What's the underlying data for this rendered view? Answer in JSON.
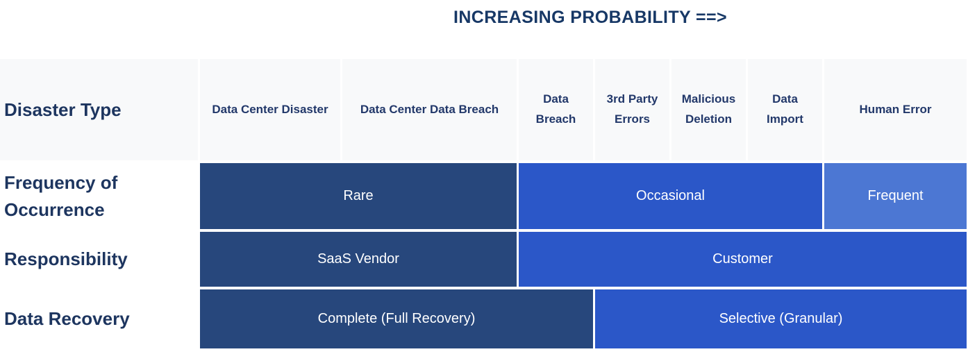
{
  "title": "INCREASING PROBABILITY ==>",
  "colors": {
    "dark": "#27477c",
    "medium": "#2b57c8",
    "light": "#4c77d3",
    "header_bg": "#f8f9fa",
    "label_text": "#1d355f",
    "title_text": "#173866",
    "cell_text": "#ffffff"
  },
  "table": {
    "header_label": "Disaster Type",
    "columns": [
      "Data Center Disaster",
      "Data Center Data Breach",
      "Data Breach",
      "3rd Party Errors",
      "Malicious Deletion",
      "Data Import",
      "Human Error"
    ],
    "rows": [
      {
        "label": "Frequency of Occurrence",
        "cells": [
          {
            "text": "Rare",
            "tone": "dark",
            "columns_spanned": [
              "Data Center Disaster",
              "Data Center Data Breach"
            ]
          },
          {
            "text": "Occasional",
            "tone": "medium",
            "columns_spanned": [
              "Data Breach",
              "3rd Party Errors",
              "Malicious Deletion",
              "Data Import"
            ]
          },
          {
            "text": "Frequent",
            "tone": "light",
            "columns_spanned": [
              "Human Error"
            ]
          }
        ]
      },
      {
        "label": "Responsibility",
        "cells": [
          {
            "text": "SaaS Vendor",
            "tone": "dark",
            "columns_spanned": [
              "Data Center Disaster",
              "Data Center Data Breach"
            ]
          },
          {
            "text": "Customer",
            "tone": "medium",
            "columns_spanned": [
              "Data Breach",
              "3rd Party Errors",
              "Malicious Deletion",
              "Data Import",
              "Human Error"
            ]
          }
        ]
      },
      {
        "label": "Data Recovery",
        "cells": [
          {
            "text": "Complete (Full Recovery)",
            "tone": "dark",
            "columns_spanned": [
              "Data Center Disaster",
              "Data Center Data Breach",
              "Data Breach"
            ]
          },
          {
            "text": "Selective (Granular)",
            "tone": "medium",
            "columns_spanned": [
              "3rd Party Errors",
              "Malicious Deletion",
              "Data Import",
              "Human Error"
            ]
          }
        ]
      }
    ]
  }
}
